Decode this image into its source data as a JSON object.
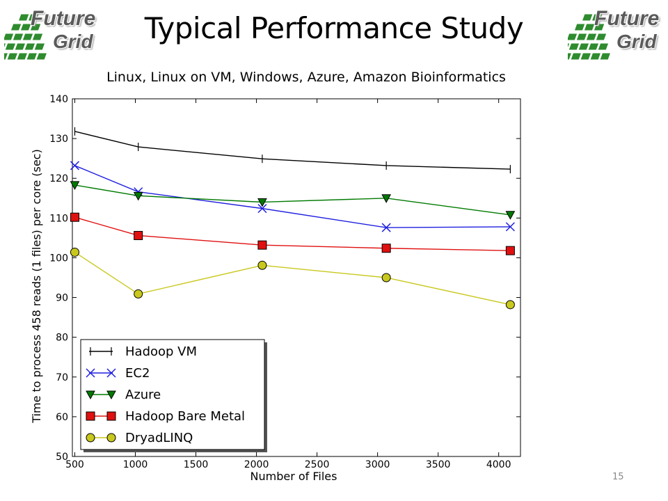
{
  "slide": {
    "title": "Typical Performance Study",
    "subtitle": "Linux, Linux on VM, Windows, Azure, Amazon Bioinformatics",
    "page_number": "15",
    "logo": {
      "line1": "Future",
      "line2": "Grid"
    }
  },
  "chart_data": {
    "type": "line",
    "title": "",
    "xlabel": "Number of Files",
    "ylabel": "Time to process 458 reads (1 files) per core (sec)",
    "xlim": [
      480,
      4180
    ],
    "ylim": [
      50,
      140
    ],
    "xticks": [
      500,
      1000,
      1500,
      2000,
      2500,
      3000,
      3500,
      4000
    ],
    "yticks": [
      50,
      60,
      70,
      80,
      90,
      100,
      110,
      120,
      130,
      140
    ],
    "grid": false,
    "legend_position": "lower-left",
    "series": [
      {
        "name": "Hadoop VM",
        "color": "#000000",
        "marker": "vline",
        "x": [
          500,
          1024,
          2048,
          3072,
          4096
        ],
        "y": [
          131.8,
          127.9,
          124.9,
          123.2,
          122.3
        ]
      },
      {
        "name": "EC2",
        "color": "#1f1fe0",
        "marker": "x",
        "x": [
          500,
          1024,
          2048,
          3072,
          4096
        ],
        "y": [
          123.2,
          116.6,
          112.4,
          107.6,
          107.8
        ]
      },
      {
        "name": "Azure",
        "color": "#007a00",
        "marker": "triangle-down",
        "x": [
          500,
          1024,
          2048,
          3072,
          4096
        ],
        "y": [
          118.3,
          115.6,
          114.0,
          115.0,
          110.8
        ]
      },
      {
        "name": "Hadoop Bare Metal",
        "color": "#e01010",
        "marker": "square",
        "x": [
          500,
          1024,
          2048,
          3072,
          4096
        ],
        "y": [
          110.2,
          105.6,
          103.2,
          102.4,
          101.8
        ]
      },
      {
        "name": "DryadLINQ",
        "color": "#c8c81e",
        "marker": "circle",
        "x": [
          500,
          1024,
          2048,
          3072,
          4096
        ],
        "y": [
          101.4,
          90.9,
          98.1,
          95.0,
          88.2
        ]
      }
    ]
  }
}
